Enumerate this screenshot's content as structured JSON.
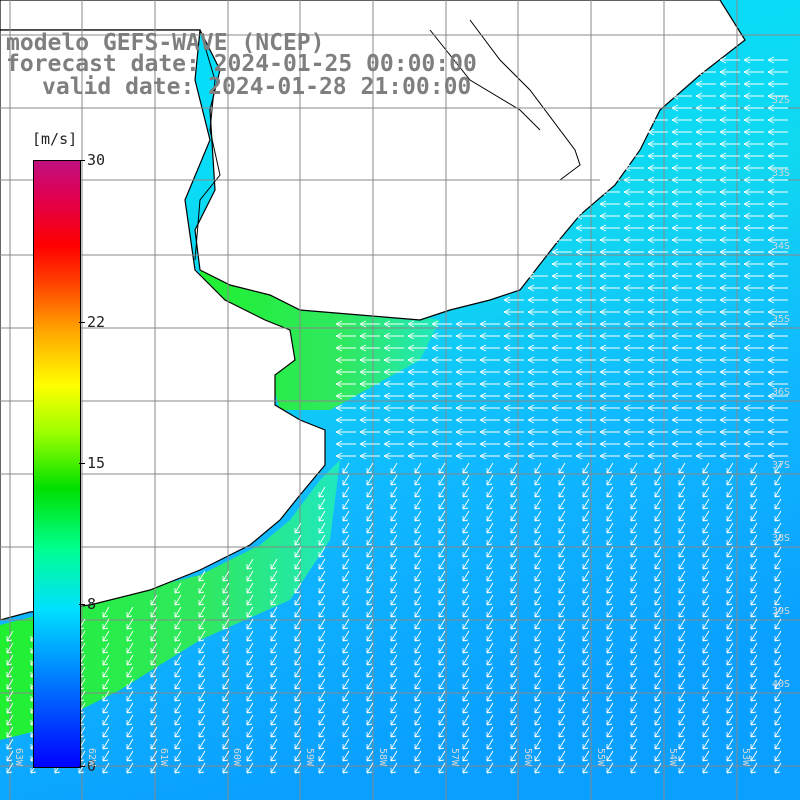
{
  "title": {
    "line1": "modelo GEFS-WAVE (NCEP)",
    "line2": "forecast date: 2024-01-25 00:00:00",
    "line3": "valid date: 2024-01-28 21:00:00"
  },
  "colorbar": {
    "units": "[m/s]",
    "ticks": [
      {
        "label": "30",
        "value": 30
      },
      {
        "label": "22",
        "value": 22
      },
      {
        "label": "15",
        "value": 15
      },
      {
        "label": "8",
        "value": 8
      },
      {
        "label": "0",
        "value": 0
      }
    ],
    "range": [
      0,
      30
    ]
  },
  "grid": {
    "lat_labels": [
      "32S",
      "33S",
      "34S",
      "35S",
      "36S",
      "37S",
      "38S",
      "39S",
      "40S"
    ],
    "lon_labels": [
      "63W",
      "62W",
      "61W",
      "60W",
      "59W",
      "58W",
      "57W",
      "56W",
      "55W",
      "54W",
      "53W"
    ]
  },
  "colors": {
    "ocean_low": "#0aa0ff",
    "ocean_mid": "#00e0ff",
    "ocean_high": "#20e8a0",
    "land": "#ffffff",
    "coast": "#000000",
    "gridline": "#888888",
    "arrow": "#ffffff",
    "title": "#7f7f7f"
  },
  "wind": {
    "north_direction": "westward",
    "south_direction": "south-westward"
  }
}
